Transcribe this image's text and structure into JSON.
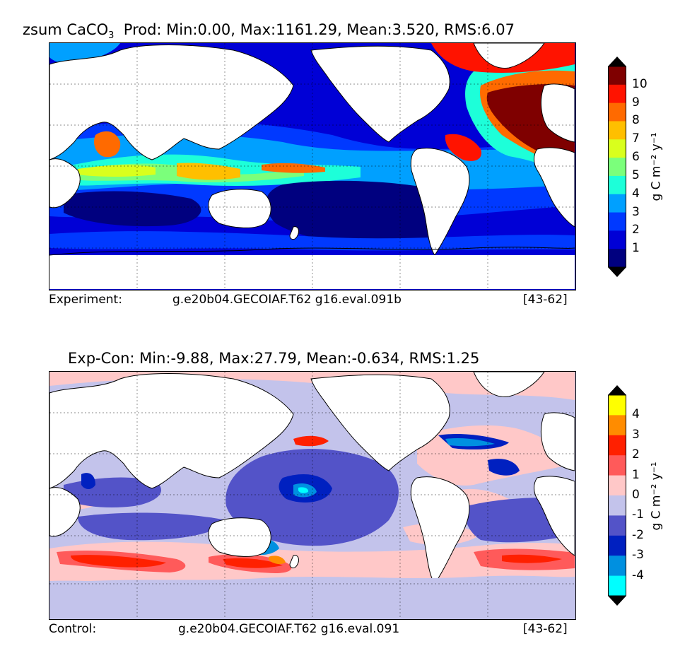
{
  "panels": [
    {
      "title_var": "zsum CaCO",
      "title_sub": "3",
      "title_rest": "  Prod: Min:0.00, Max:1161.29, Mean:3.520, RMS:6.07",
      "caption_left": "Experiment:",
      "caption_mid": "g.e20b04.GECOIAF.T62 g16.eval.091b",
      "caption_right": "[43-62]",
      "colorbar": {
        "levels": [
          "1",
          "2",
          "3",
          "4",
          "5",
          "6",
          "7",
          "8",
          "9",
          "10"
        ],
        "colors": [
          "#00007f",
          "#0000d6",
          "#0039ff",
          "#00a0ff",
          "#1dffd9",
          "#7bff7b",
          "#d9ff1d",
          "#ffbf00",
          "#ff6a00",
          "#ff1300",
          "#7f0000"
        ],
        "under_color": "#000000",
        "over_color": "#000000",
        "units": "g C m⁻² y⁻¹"
      }
    },
    {
      "title": "Exp-Con: Min:-9.88, Max:27.79, Mean:-0.634, RMS:1.25",
      "caption_left": "Control:",
      "caption_mid": "g.e20b04.GECOIAF.T62 g16.eval.091",
      "caption_right": "[43-62]",
      "colorbar": {
        "levels": [
          "4",
          "3",
          "2",
          "1",
          "0",
          "-1",
          "-2",
          "-3",
          "-4"
        ],
        "colors": [
          "#ffff00",
          "#ff8c00",
          "#ff2000",
          "#ff5a5a",
          "#ffc8c8",
          "#c3c3eb",
          "#5353c8",
          "#0020c0",
          "#0090e0",
          "#00ffff"
        ],
        "under_color": "#000000",
        "over_color": "#000000",
        "units": "g C m⁻² y⁻¹"
      }
    }
  ]
}
